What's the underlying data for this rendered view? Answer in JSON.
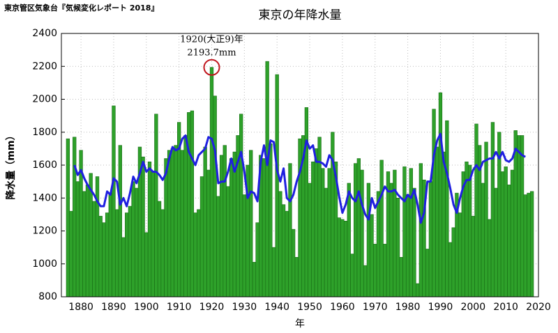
{
  "chart_data": {
    "type": "bar",
    "source": "東京管区気象台『気候変化レポート 2018』",
    "title": "東京の年降水量",
    "y_label": "降水量（mm）",
    "x_label": "年",
    "xlim": [
      1874,
      2020
    ],
    "ylim": [
      800,
      2400
    ],
    "xticks": [
      1880,
      1890,
      1900,
      1910,
      1920,
      1930,
      1940,
      1950,
      1960,
      1970,
      1980,
      1990,
      2000,
      2010,
      2020
    ],
    "yticks": [
      800,
      1000,
      1200,
      1400,
      1600,
      1800,
      2000,
      2200,
      2400
    ],
    "grid": true,
    "series": [
      {
        "type": "bar",
        "color": "#2ea12a",
        "x": [
          1876,
          1877,
          1878,
          1879,
          1880,
          1881,
          1882,
          1883,
          1884,
          1885,
          1886,
          1887,
          1888,
          1889,
          1890,
          1891,
          1892,
          1893,
          1894,
          1895,
          1896,
          1897,
          1898,
          1899,
          1900,
          1901,
          1902,
          1903,
          1904,
          1905,
          1906,
          1907,
          1908,
          1909,
          1910,
          1911,
          1912,
          1913,
          1914,
          1915,
          1916,
          1917,
          1918,
          1919,
          1920,
          1921,
          1922,
          1923,
          1924,
          1925,
          1926,
          1927,
          1928,
          1929,
          1930,
          1931,
          1932,
          1933,
          1934,
          1935,
          1936,
          1937,
          1938,
          1939,
          1940,
          1941,
          1942,
          1943,
          1944,
          1945,
          1946,
          1947,
          1948,
          1949,
          1950,
          1951,
          1952,
          1953,
          1954,
          1955,
          1956,
          1957,
          1958,
          1959,
          1960,
          1961,
          1962,
          1963,
          1964,
          1965,
          1966,
          1967,
          1968,
          1969,
          1970,
          1971,
          1972,
          1973,
          1974,
          1975,
          1976,
          1977,
          1978,
          1979,
          1980,
          1981,
          1982,
          1983,
          1984,
          1985,
          1986,
          1987,
          1988,
          1989,
          1990,
          1991,
          1992,
          1993,
          1994,
          1995,
          1996,
          1997,
          1998,
          1999,
          2000,
          2001,
          2002,
          2003,
          2004,
          2005,
          2006,
          2007,
          2008,
          2009,
          2010,
          2011,
          2012,
          2013,
          2014,
          2015,
          2016,
          2017,
          2018
        ],
        "values": [
          1760,
          1320,
          1770,
          1500,
          1690,
          1440,
          1480,
          1550,
          1380,
          1530,
          1290,
          1250,
          1310,
          1430,
          1960,
          1330,
          1720,
          1160,
          1310,
          1350,
          1500,
          1460,
          1710,
          1650,
          1190,
          1620,
          1560,
          1910,
          1380,
          1330,
          1640,
          1690,
          1700,
          1720,
          1860,
          1690,
          1780,
          1920,
          1930,
          1310,
          1330,
          1530,
          1710,
          1570,
          2193.7,
          2020,
          1410,
          1660,
          1720,
          1470,
          1640,
          1680,
          1780,
          1910,
          1420,
          1600,
          1690,
          1010,
          1250,
          1660,
          1640,
          2230,
          1730,
          1100,
          2150,
          1440,
          1360,
          1320,
          1610,
          1210,
          1040,
          1760,
          1780,
          1950,
          1490,
          1620,
          1700,
          1770,
          1580,
          1460,
          1580,
          1800,
          1620,
          1280,
          1270,
          1260,
          1490,
          1060,
          1610,
          1640,
          1570,
          990,
          1490,
          1300,
          1120,
          1440,
          1630,
          1120,
          1560,
          1490,
          1570,
          1400,
          1040,
          1590,
          1420,
          1580,
          1460,
          880,
          1610,
          1510,
          1090,
          1500,
          1940,
          1710,
          2040,
          1680,
          1870,
          1130,
          1220,
          1430,
          1310,
          1560,
          1620,
          1600,
          1290,
          1850,
          1720,
          1490,
          1740,
          1270,
          1860,
          1460,
          1800,
          1560,
          1590,
          1480,
          1570,
          1810,
          1780,
          1780,
          1420,
          1430,
          1440
        ]
      },
      {
        "type": "line",
        "color": "#1f1fe0",
        "x": [
          1878,
          1879,
          1880,
          1881,
          1882,
          1883,
          1884,
          1885,
          1886,
          1887,
          1888,
          1889,
          1890,
          1891,
          1892,
          1893,
          1894,
          1895,
          1896,
          1897,
          1898,
          1899,
          1900,
          1901,
          1902,
          1903,
          1904,
          1905,
          1906,
          1907,
          1908,
          1909,
          1910,
          1911,
          1912,
          1913,
          1914,
          1915,
          1916,
          1917,
          1918,
          1919,
          1920,
          1921,
          1922,
          1923,
          1924,
          1925,
          1926,
          1927,
          1928,
          1929,
          1930,
          1931,
          1932,
          1933,
          1934,
          1935,
          1936,
          1937,
          1938,
          1939,
          1940,
          1941,
          1942,
          1943,
          1944,
          1945,
          1946,
          1947,
          1948,
          1949,
          1950,
          1951,
          1952,
          1953,
          1954,
          1955,
          1956,
          1957,
          1958,
          1959,
          1960,
          1961,
          1962,
          1963,
          1964,
          1965,
          1966,
          1967,
          1968,
          1969,
          1970,
          1971,
          1972,
          1973,
          1974,
          1975,
          1976,
          1977,
          1978,
          1979,
          1980,
          1981,
          1982,
          1983,
          1984,
          1985,
          1986,
          1987,
          1988,
          1989,
          1990,
          1991,
          1992,
          1993,
          1994,
          1995,
          1996,
          1997,
          1998,
          1999,
          2000,
          2001,
          2002,
          2003,
          2004,
          2005,
          2006,
          2007,
          2008,
          2009,
          2010,
          2011,
          2012,
          2013,
          2014,
          2015,
          2016
        ],
        "values": [
          1600,
          1540,
          1570,
          1520,
          1480,
          1450,
          1420,
          1380,
          1350,
          1350,
          1440,
          1420,
          1520,
          1500,
          1360,
          1400,
          1350,
          1430,
          1530,
          1490,
          1550,
          1620,
          1560,
          1580,
          1560,
          1560,
          1540,
          1510,
          1550,
          1640,
          1710,
          1690,
          1700,
          1760,
          1780,
          1680,
          1640,
          1600,
          1660,
          1680,
          1700,
          1770,
          1760,
          1690,
          1490,
          1500,
          1500,
          1560,
          1640,
          1560,
          1620,
          1680,
          1560,
          1400,
          1440,
          1430,
          1380,
          1620,
          1720,
          1600,
          1750,
          1740,
          1570,
          1500,
          1580,
          1400,
          1380,
          1420,
          1500,
          1560,
          1640,
          1750,
          1700,
          1720,
          1620,
          1620,
          1610,
          1590,
          1660,
          1630,
          1530,
          1410,
          1310,
          1360,
          1440,
          1400,
          1380,
          1440,
          1360,
          1300,
          1270,
          1400,
          1340,
          1380,
          1420,
          1470,
          1440,
          1440,
          1450,
          1420,
          1400,
          1380,
          1420,
          1400,
          1450,
          1360,
          1250,
          1310,
          1500,
          1500,
          1660,
          1750,
          1790,
          1620,
          1550,
          1460,
          1360,
          1310,
          1400,
          1470,
          1510,
          1510,
          1570,
          1600,
          1570,
          1620,
          1630,
          1640,
          1640,
          1680,
          1640,
          1680,
          1630,
          1620,
          1640,
          1700,
          1680,
          1660,
          1650
        ]
      }
    ],
    "annotation": {
      "lines": [
        "1920(大正9)年",
        "2193.7mm"
      ],
      "x": 1920,
      "value": 2193.7,
      "color": "#c0141c"
    }
  }
}
